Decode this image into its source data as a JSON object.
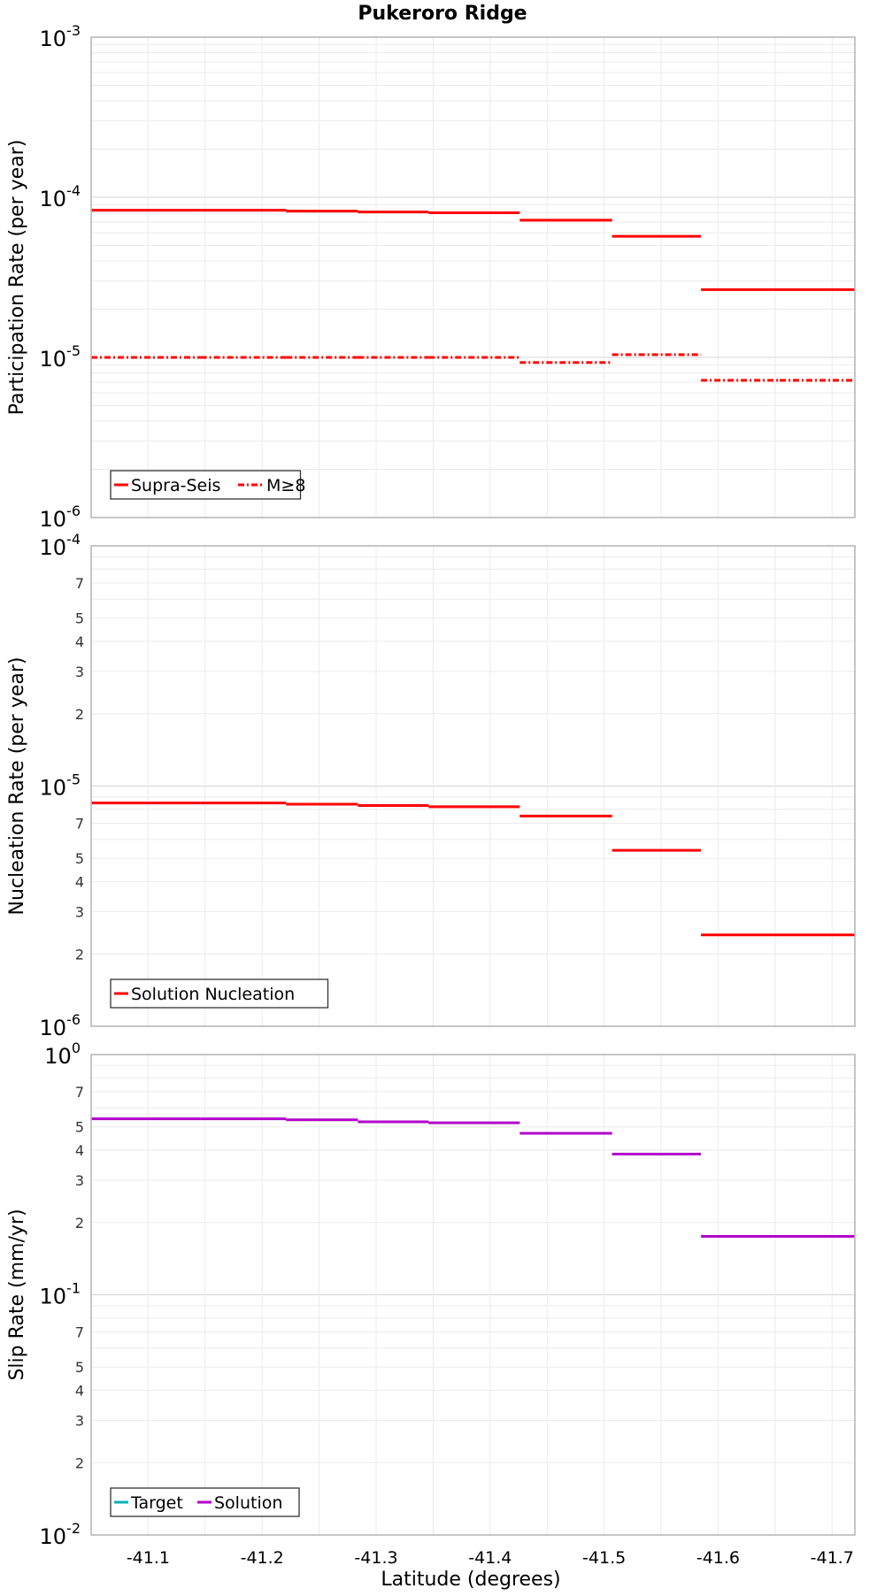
{
  "chart_data": [
    {
      "type": "line",
      "title": "Pukeroro Ridge",
      "xlabel": "Latitude (degrees)",
      "ylabel": "Participation Rate (per year)",
      "yscale": "log",
      "ylim": [
        1e-06,
        0.001
      ],
      "xlim": [
        -41.05,
        -41.72
      ],
      "x_ticks": [
        "-41.1",
        "-41.2",
        "-41.3",
        "-41.4",
        "-41.5",
        "-41.6",
        "-41.7"
      ],
      "y_ticks": [
        {
          "base": "10",
          "exp": "-6"
        },
        {
          "base": "10",
          "exp": "-5"
        },
        {
          "base": "10",
          "exp": "-4"
        },
        {
          "base": "10",
          "exp": "-3"
        }
      ],
      "minor_tick_labels": [],
      "grid": true,
      "legend": "bottom-left",
      "series": [
        {
          "name": "Supra-Seis",
          "color": "#ff0000",
          "style": "solid",
          "segments": [
            {
              "x0": -41.05,
              "x1": -41.146,
              "y": 8.3e-05
            },
            {
              "x0": -41.146,
              "x1": -41.221,
              "y": 8.3e-05
            },
            {
              "x0": -41.221,
              "x1": -41.284,
              "y": 8.2e-05
            },
            {
              "x0": -41.284,
              "x1": -41.346,
              "y": 8.1e-05
            },
            {
              "x0": -41.346,
              "x1": -41.426,
              "y": 8e-05
            },
            {
              "x0": -41.426,
              "x1": -41.507,
              "y": 7.2e-05
            },
            {
              "x0": -41.507,
              "x1": -41.585,
              "y": 5.7e-05
            },
            {
              "x0": -41.585,
              "x1": -41.654,
              "y": 2.65e-05
            },
            {
              "x0": -41.654,
              "x1": -41.72,
              "y": 2.65e-05
            }
          ]
        },
        {
          "name": "M≥8",
          "color": "#ff0000",
          "style": "dashdot",
          "segments": [
            {
              "x0": -41.05,
              "x1": -41.146,
              "y": 1e-05
            },
            {
              "x0": -41.146,
              "x1": -41.221,
              "y": 1e-05
            },
            {
              "x0": -41.221,
              "x1": -41.284,
              "y": 1e-05
            },
            {
              "x0": -41.284,
              "x1": -41.346,
              "y": 1e-05
            },
            {
              "x0": -41.346,
              "x1": -41.426,
              "y": 1e-05
            },
            {
              "x0": -41.426,
              "x1": -41.507,
              "y": 9.3e-06
            },
            {
              "x0": -41.507,
              "x1": -41.585,
              "y": 1.04e-05
            },
            {
              "x0": -41.585,
              "x1": -41.654,
              "y": 7.2e-06
            },
            {
              "x0": -41.654,
              "x1": -41.72,
              "y": 7.2e-06
            }
          ]
        }
      ]
    },
    {
      "type": "line",
      "xlabel": "",
      "ylabel": "Nucleation Rate (per year)",
      "yscale": "log",
      "ylim": [
        1e-06,
        0.0001
      ],
      "xlim": [
        -41.05,
        -41.72
      ],
      "y_ticks": [
        {
          "base": "10",
          "exp": "-6"
        },
        {
          "base": "10",
          "exp": "-5"
        },
        {
          "base": "10",
          "exp": "-4"
        }
      ],
      "minor_tick_labels": [
        "2",
        "3",
        "4",
        "5",
        "7"
      ],
      "grid": true,
      "legend": "bottom-left",
      "series": [
        {
          "name": "Solution Nucleation",
          "color": "#ff0000",
          "style": "solid",
          "segments": [
            {
              "x0": -41.05,
              "x1": -41.146,
              "y": 8.5e-06
            },
            {
              "x0": -41.146,
              "x1": -41.221,
              "y": 8.5e-06
            },
            {
              "x0": -41.221,
              "x1": -41.284,
              "y": 8.4e-06
            },
            {
              "x0": -41.284,
              "x1": -41.346,
              "y": 8.3e-06
            },
            {
              "x0": -41.346,
              "x1": -41.426,
              "y": 8.2e-06
            },
            {
              "x0": -41.426,
              "x1": -41.507,
              "y": 7.5e-06
            },
            {
              "x0": -41.507,
              "x1": -41.585,
              "y": 5.4e-06
            },
            {
              "x0": -41.585,
              "x1": -41.654,
              "y": 2.4e-06
            },
            {
              "x0": -41.654,
              "x1": -41.72,
              "y": 2.4e-06
            }
          ]
        }
      ]
    },
    {
      "type": "line",
      "xlabel": "Latitude (degrees)",
      "ylabel": "Slip Rate (mm/yr)",
      "yscale": "log",
      "ylim": [
        0.01,
        1
      ],
      "xlim": [
        -41.05,
        -41.72
      ],
      "y_ticks": [
        {
          "base": "10",
          "exp": "-2"
        },
        {
          "base": "10",
          "exp": "-1"
        },
        {
          "base": "10",
          "exp": "0"
        }
      ],
      "minor_tick_labels": [
        "2",
        "3",
        "4",
        "5",
        "7"
      ],
      "grid": true,
      "legend": "bottom-left",
      "series": [
        {
          "name": "Target",
          "color": "#00b3b3",
          "style": "solid",
          "segments": []
        },
        {
          "name": "Solution",
          "color": "#b300cc",
          "style": "solid",
          "segments": [
            {
              "x0": -41.05,
              "x1": -41.146,
              "y": 0.54
            },
            {
              "x0": -41.146,
              "x1": -41.221,
              "y": 0.54
            },
            {
              "x0": -41.221,
              "x1": -41.284,
              "y": 0.535
            },
            {
              "x0": -41.284,
              "x1": -41.346,
              "y": 0.525
            },
            {
              "x0": -41.346,
              "x1": -41.426,
              "y": 0.52
            },
            {
              "x0": -41.426,
              "x1": -41.507,
              "y": 0.47
            },
            {
              "x0": -41.507,
              "x1": -41.585,
              "y": 0.385
            },
            {
              "x0": -41.585,
              "x1": -41.654,
              "y": 0.175
            },
            {
              "x0": -41.654,
              "x1": -41.72,
              "y": 0.175
            }
          ]
        }
      ]
    }
  ]
}
